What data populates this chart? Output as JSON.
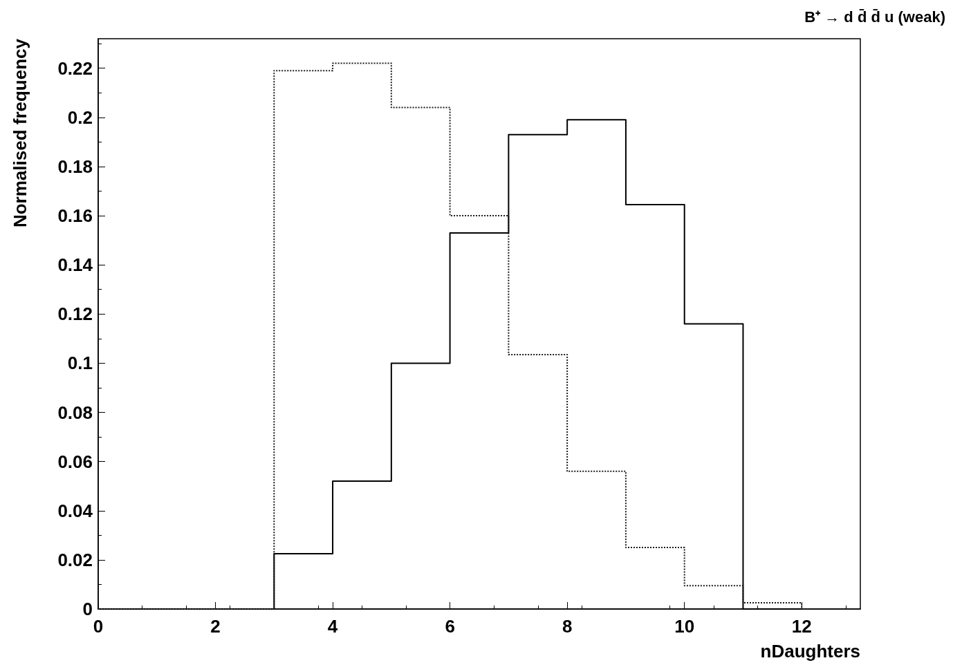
{
  "chart_data": {
    "type": "histogram",
    "subtitle": "B⁺ → d d̄ d̄ u (weak)",
    "xlabel": "nDaughters",
    "ylabel": "Normalised frequency",
    "bins": [
      0,
      1,
      2,
      3,
      4,
      5,
      6,
      7,
      8,
      9,
      10,
      11,
      12
    ],
    "series": [
      {
        "color": "#000000",
        "line_style": "solid",
        "values": [
          0,
          0,
          0,
          0.0225,
          0.052,
          0.1,
          0.153,
          0.193,
          0.199,
          0.1645,
          0.116,
          0
        ]
      },
      {
        "color": "#1a1a1a",
        "line_style": "dotted",
        "values": [
          0,
          0,
          0,
          0.219,
          0.222,
          0.204,
          0.16,
          0.1035,
          0.056,
          0.025,
          0.0095,
          0.0025
        ]
      }
    ],
    "xlim": [
      0,
      13
    ],
    "xticks": [
      0,
      2,
      4,
      6,
      8,
      10,
      12
    ],
    "ylim": [
      0,
      0.232
    ],
    "yticks": [
      0,
      0.02,
      0.04,
      0.06,
      0.08,
      0.1,
      0.12,
      0.14,
      0.16,
      0.18,
      0.2,
      0.22
    ],
    "grid": false
  }
}
